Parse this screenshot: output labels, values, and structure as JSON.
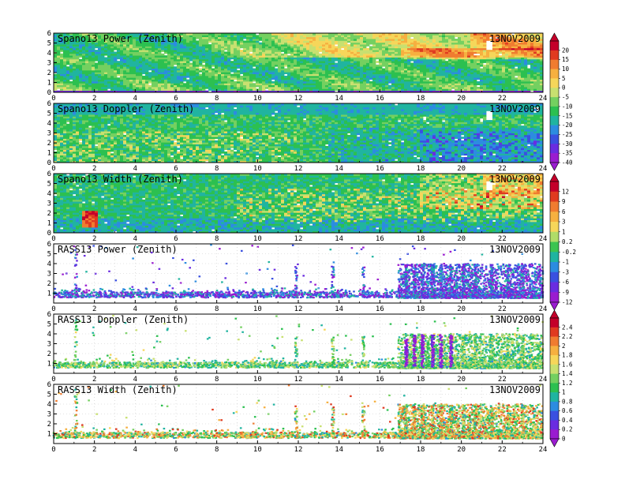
{
  "chart_data": [
    {
      "type": "heatmap",
      "title": "Spano13 Power (Zenith)",
      "date": "13NOV2009",
      "x_ticks": [
        0,
        2,
        4,
        6,
        8,
        10,
        12,
        14,
        16,
        18,
        20,
        22,
        24
      ],
      "y_ticks": [
        0,
        1,
        2,
        3,
        4,
        5,
        6
      ],
      "xlim": [
        0,
        24
      ],
      "ylim": [
        0,
        6
      ],
      "colorbar": {
        "ticks": [
          "20",
          "15",
          "10",
          "5",
          "0",
          "-5",
          "-10",
          "-15",
          "-20",
          "-25",
          "-30",
          "-35",
          "-40"
        ],
        "colors": [
          "#c4002a",
          "#e03a20",
          "#f07c30",
          "#f6b040",
          "#f6d65a",
          "#c8e070",
          "#74d060",
          "#2cc050",
          "#20b4a0",
          "#2c8ce0",
          "#3a50e0",
          "#6a2ce0",
          "#9a1cd0"
        ]
      }
    },
    {
      "type": "heatmap",
      "title": "Spano13 Doppler (Zenith)",
      "date": "13NOV2009",
      "x_ticks": [
        0,
        2,
        4,
        6,
        8,
        10,
        12,
        14,
        16,
        18,
        20,
        22,
        24
      ],
      "y_ticks": [
        0,
        1,
        2,
        3,
        4,
        5,
        6
      ],
      "xlim": [
        0,
        24
      ],
      "ylim": [
        0,
        6
      ]
    },
    {
      "type": "heatmap",
      "title": "Spano13 Width (Zenith)",
      "date": "13NOV2009",
      "x_ticks": [
        0,
        2,
        4,
        6,
        8,
        10,
        12,
        14,
        16,
        18,
        20,
        22,
        24
      ],
      "y_ticks": [
        0,
        1,
        2,
        3,
        4,
        5,
        6
      ],
      "xlim": [
        0,
        24
      ],
      "ylim": [
        0,
        6
      ],
      "colorbar": {
        "ticks": [
          "12",
          "9",
          "6",
          "3",
          "1",
          "0.2",
          "-0.2",
          "-1",
          "-3",
          "-6",
          "-9",
          "-12"
        ],
        "colors": [
          "#c4002a",
          "#e03a20",
          "#f07c30",
          "#f6b040",
          "#f6d65a",
          "#b0dc68",
          "#3cc450",
          "#20b4a0",
          "#2c8ce0",
          "#3a50e0",
          "#6a2ce0",
          "#9a1cd0"
        ]
      }
    },
    {
      "type": "scatter",
      "title": "RASS13 Power (Zenith)",
      "date": "13NOV2009",
      "x_ticks": [
        0,
        2,
        4,
        6,
        8,
        10,
        12,
        14,
        16,
        18,
        20,
        22,
        24
      ],
      "y_ticks": [
        1,
        2,
        3,
        4,
        5,
        6
      ],
      "xlim": [
        0,
        24
      ],
      "ylim": [
        0,
        6
      ]
    },
    {
      "type": "scatter",
      "title": "RASS13 Doppler (Zenith)",
      "date": "13NOV2009",
      "x_ticks": [
        0,
        2,
        4,
        6,
        8,
        10,
        12,
        14,
        16,
        18,
        20,
        22,
        24
      ],
      "y_ticks": [
        1,
        2,
        3,
        4,
        5,
        6
      ],
      "xlim": [
        0,
        24
      ],
      "ylim": [
        0,
        6
      ],
      "colorbar": {
        "ticks": [
          "2.4",
          "2.2",
          "2",
          "1.8",
          "1.6",
          "1.4",
          "1.2",
          "1",
          "0.8",
          "0.6",
          "0.4",
          "0.2",
          "0"
        ],
        "colors": [
          "#c4002a",
          "#e03a20",
          "#f07c30",
          "#f6b040",
          "#f6d65a",
          "#c8e070",
          "#74d060",
          "#2cc050",
          "#20b4a0",
          "#2c8ce0",
          "#3a50e0",
          "#6a2ce0",
          "#9a1cd0"
        ]
      }
    },
    {
      "type": "scatter",
      "title": "RASS13 Width (Zenith)",
      "date": "13NOV2009",
      "x_ticks": [
        0,
        2,
        4,
        6,
        8,
        10,
        12,
        14,
        16,
        18,
        20,
        22,
        24
      ],
      "y_ticks": [
        1,
        2,
        3,
        4,
        5,
        6
      ],
      "xlim": [
        0,
        24
      ],
      "ylim": [
        0,
        6
      ]
    }
  ]
}
